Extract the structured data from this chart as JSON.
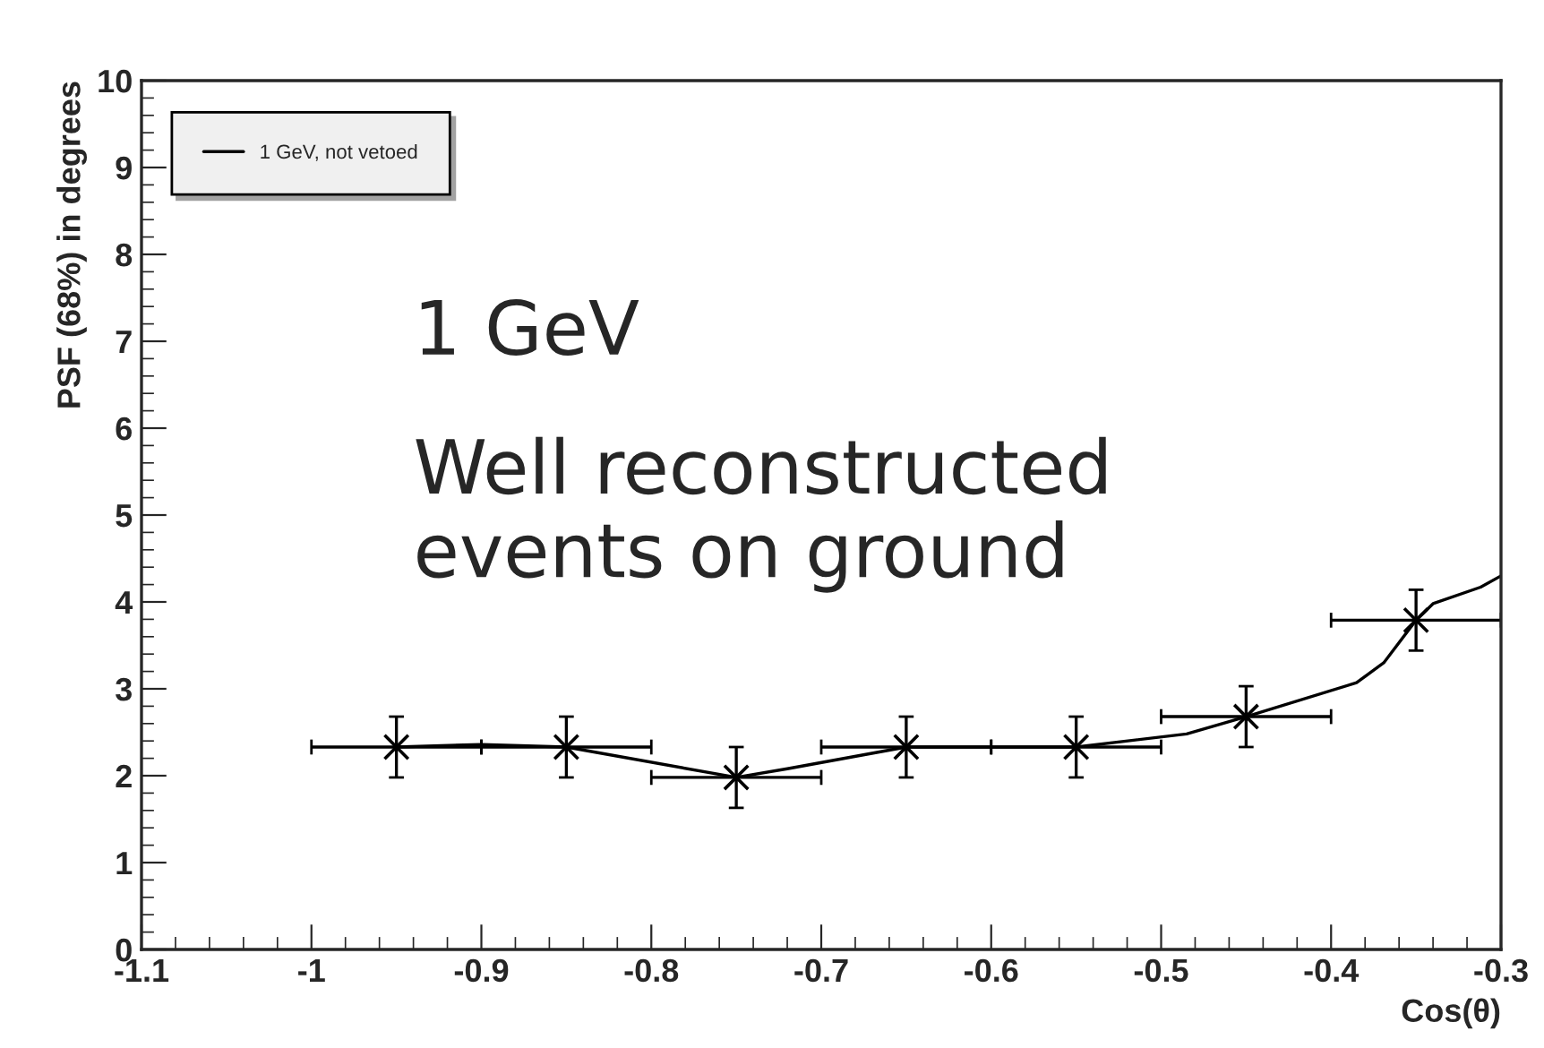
{
  "chart_data": {
    "type": "line",
    "xlabel": "Cos(θ)",
    "ylabel": "PSF (68%) in degrees",
    "annotations": [
      "1 GeV",
      "Well reconstructed\nevents on ground"
    ],
    "series": [
      {
        "name": "1 GeV, not vetoed",
        "color": "#000000",
        "marker": "none",
        "x": [
          -0.95,
          -0.9,
          -0.85,
          -0.75,
          -0.72,
          -0.65,
          -0.55,
          -0.485,
          -0.45,
          -0.385,
          -0.369,
          -0.35,
          -0.34,
          -0.312,
          -0.3
        ],
        "values": [
          2.33,
          2.36,
          2.33,
          1.98,
          2.08,
          2.33,
          2.33,
          2.48,
          2.68,
          3.07,
          3.3,
          3.79,
          3.98,
          4.17,
          4.3
        ]
      },
      {
        "type": "scatter",
        "color": "#000000",
        "marker": "cross",
        "x": [
          -0.95,
          -0.85,
          -0.75,
          -0.65,
          -0.55,
          -0.45,
          -0.35
        ],
        "values": [
          2.33,
          2.33,
          1.98,
          2.33,
          2.33,
          2.68,
          3.79
        ],
        "errors": [
          0.35,
          0.35,
          0.35,
          0.35,
          0.35,
          0.35,
          0.35
        ],
        "xerrors": [
          0.05,
          0.05,
          0.05,
          0.05,
          0.05,
          0.05,
          0.05
        ]
      }
    ],
    "xlim": [
      -1.1,
      -0.3
    ],
    "xticks": [
      -1.1,
      -1,
      -0.9,
      -0.8,
      -0.7,
      -0.6,
      -0.5,
      -0.4,
      -0.3
    ],
    "ylim": [
      0,
      10
    ],
    "yticks": [
      0,
      1,
      2,
      3,
      4,
      5,
      6,
      7,
      8,
      9,
      10
    ],
    "grid": false,
    "legend": "top left"
  }
}
